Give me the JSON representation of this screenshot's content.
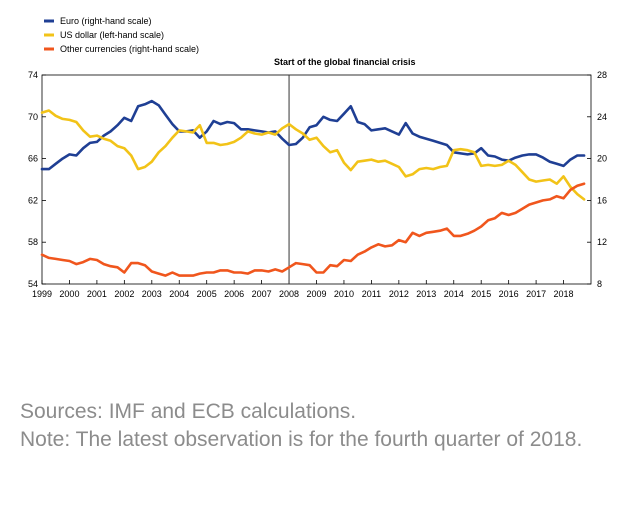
{
  "chart_data": {
    "type": "line",
    "annotation": "Start of the global financial crisis",
    "annotation_x": 2008.0,
    "x_tick_labels": [
      "1999",
      "2000",
      "2001",
      "2002",
      "2003",
      "2004",
      "2005",
      "2006",
      "2007",
      "2008",
      "2009",
      "2010",
      "2011",
      "2012",
      "2013",
      "2014",
      "2015",
      "2016",
      "2017",
      "2018"
    ],
    "y_left_ticks": [
      "54",
      "58",
      "62",
      "66",
      "70",
      "74"
    ],
    "y_right_ticks": [
      "8",
      "12",
      "16",
      "20",
      "24",
      "28"
    ],
    "ylim_left": [
      54,
      74
    ],
    "ylim_right": [
      8,
      28
    ],
    "xlim": [
      1999.0,
      2019.0
    ],
    "grid": false,
    "legend_position": "top-left",
    "series": [
      {
        "name": "Euro (right-hand scale)",
        "axis": "right",
        "color": "#1f3f94",
        "points": [
          [
            1999.0,
            19.0
          ],
          [
            1999.25,
            19.0
          ],
          [
            1999.5,
            19.5
          ],
          [
            1999.75,
            20.0
          ],
          [
            2000.0,
            20.4
          ],
          [
            2000.25,
            20.3
          ],
          [
            2000.5,
            21.0
          ],
          [
            2000.75,
            21.5
          ],
          [
            2001.0,
            21.6
          ],
          [
            2001.25,
            22.2
          ],
          [
            2001.5,
            22.6
          ],
          [
            2001.75,
            23.2
          ],
          [
            2002.0,
            23.9
          ],
          [
            2002.25,
            23.6
          ],
          [
            2002.5,
            25.0
          ],
          [
            2002.75,
            25.2
          ],
          [
            2003.0,
            25.5
          ],
          [
            2003.25,
            25.1
          ],
          [
            2003.5,
            24.2
          ],
          [
            2003.75,
            23.3
          ],
          [
            2004.0,
            22.6
          ],
          [
            2004.25,
            22.6
          ],
          [
            2004.5,
            22.7
          ],
          [
            2004.75,
            22.0
          ],
          [
            2005.0,
            22.6
          ],
          [
            2005.25,
            23.6
          ],
          [
            2005.5,
            23.3
          ],
          [
            2005.75,
            23.5
          ],
          [
            2006.0,
            23.4
          ],
          [
            2006.25,
            22.8
          ],
          [
            2006.5,
            22.8
          ],
          [
            2006.75,
            22.7
          ],
          [
            2007.0,
            22.6
          ],
          [
            2007.25,
            22.5
          ],
          [
            2007.5,
            22.6
          ],
          [
            2007.75,
            21.9
          ],
          [
            2008.0,
            21.3
          ],
          [
            2008.25,
            21.4
          ],
          [
            2008.5,
            22.0
          ],
          [
            2008.75,
            23.0
          ],
          [
            2009.0,
            23.2
          ],
          [
            2009.25,
            24.0
          ],
          [
            2009.5,
            23.7
          ],
          [
            2009.75,
            23.6
          ],
          [
            2010.0,
            24.3
          ],
          [
            2010.25,
            25.0
          ],
          [
            2010.5,
            23.5
          ],
          [
            2010.75,
            23.3
          ],
          [
            2011.0,
            22.7
          ],
          [
            2011.25,
            22.8
          ],
          [
            2011.5,
            22.9
          ],
          [
            2011.75,
            22.6
          ],
          [
            2012.0,
            22.3
          ],
          [
            2012.25,
            23.4
          ],
          [
            2012.5,
            22.4
          ],
          [
            2012.75,
            22.1
          ],
          [
            2013.0,
            21.9
          ],
          [
            2013.25,
            21.7
          ],
          [
            2013.5,
            21.5
          ],
          [
            2013.75,
            21.3
          ],
          [
            2014.0,
            20.6
          ],
          [
            2014.25,
            20.5
          ],
          [
            2014.5,
            20.4
          ],
          [
            2014.75,
            20.5
          ],
          [
            2015.0,
            21.0
          ],
          [
            2015.25,
            20.3
          ],
          [
            2015.5,
            20.2
          ],
          [
            2015.75,
            19.9
          ],
          [
            2016.0,
            19.8
          ],
          [
            2016.25,
            20.1
          ],
          [
            2016.5,
            20.3
          ],
          [
            2016.75,
            20.4
          ],
          [
            2017.0,
            20.4
          ],
          [
            2017.25,
            20.1
          ],
          [
            2017.5,
            19.7
          ],
          [
            2017.75,
            19.5
          ],
          [
            2018.0,
            19.3
          ],
          [
            2018.25,
            19.9
          ],
          [
            2018.5,
            20.3
          ],
          [
            2018.75,
            20.3
          ]
        ]
      },
      {
        "name": "US dollar (left-hand scale)",
        "axis": "left",
        "color": "#f2c318",
        "points": [
          [
            1999.0,
            70.4
          ],
          [
            1999.25,
            70.6
          ],
          [
            1999.5,
            70.1
          ],
          [
            1999.75,
            69.8
          ],
          [
            2000.0,
            69.7
          ],
          [
            2000.25,
            69.5
          ],
          [
            2000.5,
            68.7
          ],
          [
            2000.75,
            68.1
          ],
          [
            2001.0,
            68.2
          ],
          [
            2001.25,
            67.9
          ],
          [
            2001.5,
            67.7
          ],
          [
            2001.75,
            67.2
          ],
          [
            2002.0,
            67.0
          ],
          [
            2002.25,
            66.3
          ],
          [
            2002.5,
            65.0
          ],
          [
            2002.75,
            65.2
          ],
          [
            2003.0,
            65.7
          ],
          [
            2003.25,
            66.6
          ],
          [
            2003.5,
            67.2
          ],
          [
            2003.75,
            68.0
          ],
          [
            2004.0,
            68.7
          ],
          [
            2004.25,
            68.6
          ],
          [
            2004.5,
            68.5
          ],
          [
            2004.75,
            69.2
          ],
          [
            2005.0,
            67.5
          ],
          [
            2005.25,
            67.5
          ],
          [
            2005.5,
            67.3
          ],
          [
            2005.75,
            67.4
          ],
          [
            2006.0,
            67.6
          ],
          [
            2006.25,
            68.0
          ],
          [
            2006.5,
            68.6
          ],
          [
            2006.75,
            68.4
          ],
          [
            2007.0,
            68.3
          ],
          [
            2007.25,
            68.5
          ],
          [
            2007.5,
            68.3
          ],
          [
            2007.75,
            68.9
          ],
          [
            2008.0,
            69.3
          ],
          [
            2008.25,
            68.8
          ],
          [
            2008.5,
            68.4
          ],
          [
            2008.75,
            67.8
          ],
          [
            2009.0,
            68.0
          ],
          [
            2009.25,
            67.2
          ],
          [
            2009.5,
            66.6
          ],
          [
            2009.75,
            66.8
          ],
          [
            2010.0,
            65.6
          ],
          [
            2010.25,
            64.9
          ],
          [
            2010.5,
            65.7
          ],
          [
            2010.75,
            65.8
          ],
          [
            2011.0,
            65.9
          ],
          [
            2011.25,
            65.7
          ],
          [
            2011.5,
            65.8
          ],
          [
            2011.75,
            65.5
          ],
          [
            2012.0,
            65.2
          ],
          [
            2012.25,
            64.3
          ],
          [
            2012.5,
            64.5
          ],
          [
            2012.75,
            65.0
          ],
          [
            2013.0,
            65.1
          ],
          [
            2013.25,
            65.0
          ],
          [
            2013.5,
            65.2
          ],
          [
            2013.75,
            65.3
          ],
          [
            2014.0,
            66.8
          ],
          [
            2014.25,
            66.9
          ],
          [
            2014.5,
            66.8
          ],
          [
            2014.75,
            66.6
          ],
          [
            2015.0,
            65.3
          ],
          [
            2015.25,
            65.4
          ],
          [
            2015.5,
            65.3
          ],
          [
            2015.75,
            65.4
          ],
          [
            2016.0,
            65.8
          ],
          [
            2016.25,
            65.4
          ],
          [
            2016.5,
            64.7
          ],
          [
            2016.75,
            64.0
          ],
          [
            2017.0,
            63.8
          ],
          [
            2017.25,
            63.9
          ],
          [
            2017.5,
            64.0
          ],
          [
            2017.75,
            63.6
          ],
          [
            2018.0,
            64.3
          ],
          [
            2018.25,
            63.3
          ],
          [
            2018.5,
            62.6
          ],
          [
            2018.75,
            62.1
          ]
        ]
      },
      {
        "name": "Other currencies (right-hand scale)",
        "axis": "right",
        "color": "#f0561d",
        "points": [
          [
            1999.0,
            10.8
          ],
          [
            1999.25,
            10.5
          ],
          [
            1999.5,
            10.4
          ],
          [
            1999.75,
            10.3
          ],
          [
            2000.0,
            10.2
          ],
          [
            2000.25,
            9.9
          ],
          [
            2000.5,
            10.1
          ],
          [
            2000.75,
            10.4
          ],
          [
            2001.0,
            10.3
          ],
          [
            2001.25,
            9.9
          ],
          [
            2001.5,
            9.7
          ],
          [
            2001.75,
            9.6
          ],
          [
            2002.0,
            9.1
          ],
          [
            2002.25,
            10.0
          ],
          [
            2002.5,
            10.0
          ],
          [
            2002.75,
            9.8
          ],
          [
            2003.0,
            9.2
          ],
          [
            2003.25,
            9.0
          ],
          [
            2003.5,
            8.8
          ],
          [
            2003.75,
            9.1
          ],
          [
            2004.0,
            8.8
          ],
          [
            2004.25,
            8.8
          ],
          [
            2004.5,
            8.8
          ],
          [
            2004.75,
            9.0
          ],
          [
            2005.0,
            9.1
          ],
          [
            2005.25,
            9.1
          ],
          [
            2005.5,
            9.3
          ],
          [
            2005.75,
            9.3
          ],
          [
            2006.0,
            9.1
          ],
          [
            2006.25,
            9.1
          ],
          [
            2006.5,
            9.0
          ],
          [
            2006.75,
            9.3
          ],
          [
            2007.0,
            9.3
          ],
          [
            2007.25,
            9.2
          ],
          [
            2007.5,
            9.4
          ],
          [
            2007.75,
            9.2
          ],
          [
            2008.0,
            9.6
          ],
          [
            2008.25,
            10.0
          ],
          [
            2008.5,
            9.9
          ],
          [
            2008.75,
            9.8
          ],
          [
            2009.0,
            9.1
          ],
          [
            2009.25,
            9.1
          ],
          [
            2009.5,
            9.8
          ],
          [
            2009.75,
            9.7
          ],
          [
            2010.0,
            10.3
          ],
          [
            2010.25,
            10.2
          ],
          [
            2010.5,
            10.8
          ],
          [
            2010.75,
            11.1
          ],
          [
            2011.0,
            11.5
          ],
          [
            2011.25,
            11.8
          ],
          [
            2011.5,
            11.6
          ],
          [
            2011.75,
            11.7
          ],
          [
            2012.0,
            12.2
          ],
          [
            2012.25,
            12.0
          ],
          [
            2012.5,
            12.9
          ],
          [
            2012.75,
            12.6
          ],
          [
            2013.0,
            12.9
          ],
          [
            2013.25,
            13.0
          ],
          [
            2013.5,
            13.1
          ],
          [
            2013.75,
            13.3
          ],
          [
            2014.0,
            12.6
          ],
          [
            2014.25,
            12.6
          ],
          [
            2014.5,
            12.8
          ],
          [
            2014.75,
            13.1
          ],
          [
            2015.0,
            13.5
          ],
          [
            2015.25,
            14.1
          ],
          [
            2015.5,
            14.3
          ],
          [
            2015.75,
            14.8
          ],
          [
            2016.0,
            14.6
          ],
          [
            2016.25,
            14.8
          ],
          [
            2016.5,
            15.2
          ],
          [
            2016.75,
            15.6
          ],
          [
            2017.0,
            15.8
          ],
          [
            2017.25,
            16.0
          ],
          [
            2017.5,
            16.1
          ],
          [
            2017.75,
            16.4
          ],
          [
            2018.0,
            16.2
          ],
          [
            2018.25,
            17.0
          ],
          [
            2018.5,
            17.4
          ],
          [
            2018.75,
            17.6
          ]
        ]
      }
    ]
  },
  "notes": {
    "sources": "Sources: IMF and ECB calculations.",
    "note": "Note: The latest observation is for the fourth quarter of 2018."
  }
}
